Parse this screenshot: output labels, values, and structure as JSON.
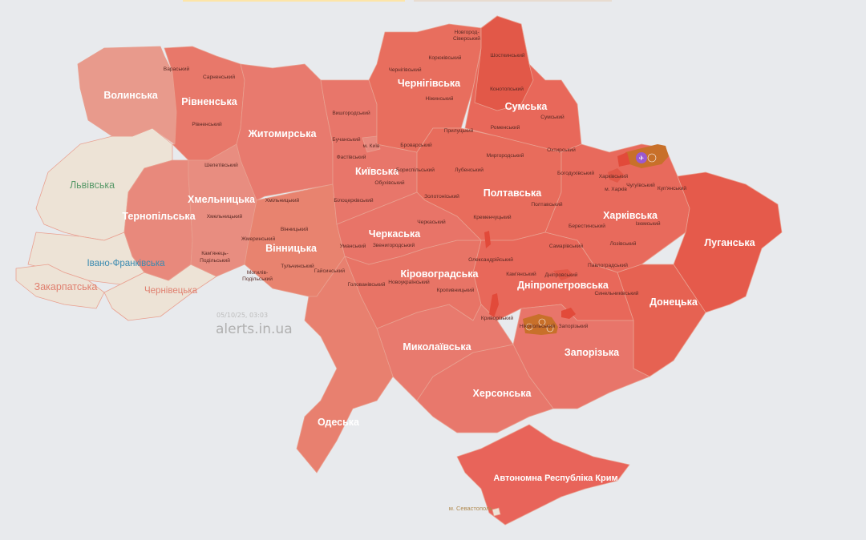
{
  "colors": {
    "background": "#e8eaed",
    "no_alert": "#ede3d6",
    "alert_light": "#e89a8c",
    "alert": "#e8786a",
    "alert_strong": "#e25848",
    "threat_orange": "#c8702a",
    "threat_purple": "#9b59d0"
  },
  "oblasts": [
    {
      "name": "Волинська",
      "alert": true
    },
    {
      "name": "Рівненська",
      "alert": true
    },
    {
      "name": "Житомирська",
      "alert": true
    },
    {
      "name": "Чернігівська",
      "alert": true
    },
    {
      "name": "Сумська",
      "alert": true
    },
    {
      "name": "Київська",
      "alert": true
    },
    {
      "name": "Полтавська",
      "alert": true
    },
    {
      "name": "Харківська",
      "alert": true
    },
    {
      "name": "Луганська",
      "alert": true
    },
    {
      "name": "Хмельницька",
      "alert": true
    },
    {
      "name": "Тернопільська",
      "alert": true
    },
    {
      "name": "Львівська",
      "alert": false
    },
    {
      "name": "Івано-Франківська",
      "alert": false
    },
    {
      "name": "Закарпатська",
      "alert": false
    },
    {
      "name": "Чернівецька",
      "alert": false
    },
    {
      "name": "Вінницька",
      "alert": true
    },
    {
      "name": "Черкаська",
      "alert": true
    },
    {
      "name": "Кіровоградська",
      "alert": true
    },
    {
      "name": "Дніпропетровська",
      "alert": true
    },
    {
      "name": "Донецька",
      "alert": true
    },
    {
      "name": "Запорізька",
      "alert": true
    },
    {
      "name": "Миколаївська",
      "alert": true
    },
    {
      "name": "Херсонська",
      "alert": true
    },
    {
      "name": "Одеська",
      "alert": true
    },
    {
      "name": "Автономна Республіка Крим",
      "alert": true
    },
    {
      "name": "м. Севастополь",
      "alert": false
    }
  ],
  "raions": [
    "Вараський",
    "Сарненський",
    "Рівненський",
    "Шепетівський",
    "Хмельницький",
    "Хмільницький",
    "Вінницький",
    "Жмеринський",
    "Кам'янець-",
    "Подільський",
    "Тульчинський",
    "Могилів-",
    "Подільський",
    "Гайсинський",
    "Вишгородський",
    "Бучанський",
    "м. Київ",
    "Фастівський",
    "Броварський",
    "Бориспільський",
    "Обухівський",
    "Білоцерківський",
    "Золотоніський",
    "Черкаський",
    "Уманський",
    "Звенигородський",
    "Голованівський",
    "Новоукраїнський",
    "Кропивницький",
    "Олександрійський",
    "Кременчуцький",
    "Лубенський",
    "Миргородський",
    "Прилуцький",
    "Ніжинський",
    "Чернігівський",
    "Корюківський",
    "Новгород-",
    "Сіверський",
    "Шосткинський",
    "Конотопський",
    "Роменський",
    "Сумський",
    "Охтирський",
    "Богодухівський",
    "Харківський",
    "м. Харків",
    "Чугуївський",
    "Куп'янський",
    "Полтавський",
    "Ізюмський",
    "Берестинський",
    "Самарівський",
    "Лозівський",
    "Павлоградський",
    "Кам'янський",
    "Дніпровський",
    "Синельниківський",
    "Криворізький",
    "Нікопольський",
    "Запорізький"
  ],
  "watermark": {
    "timestamp": "05/10/25, 03:03",
    "site": "alerts.in.ua"
  },
  "threat_icons": [
    "drone-icon",
    "artillery-icon"
  ]
}
